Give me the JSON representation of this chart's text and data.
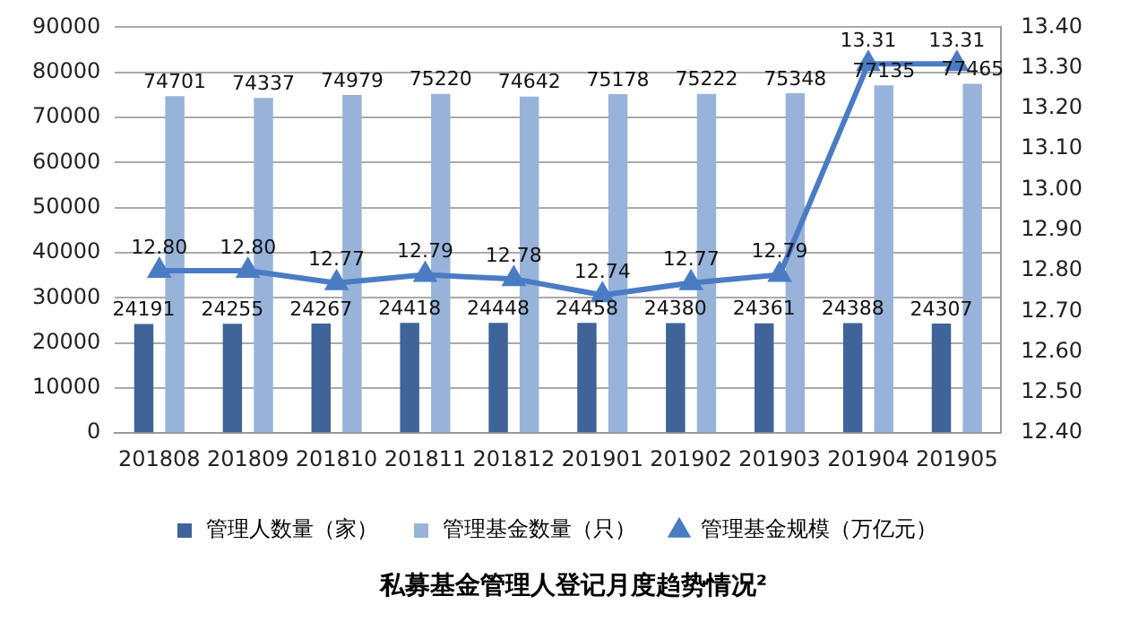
{
  "chart_data": {
    "type": "bar",
    "title": "私募基金管理人登记月度趋势情况²",
    "categories": [
      "201808",
      "201809",
      "201810",
      "201811",
      "201812",
      "201901",
      "201902",
      "201903",
      "201904",
      "201905"
    ],
    "series": [
      {
        "name": "管理人数量（家）",
        "color": "#3e6499",
        "values": [
          24191,
          24255,
          24267,
          24418,
          24448,
          24458,
          24380,
          24361,
          24388,
          24307
        ]
      },
      {
        "name": "管理基金数量（只）",
        "color": "#98b3da",
        "values": [
          74701,
          74337,
          74979,
          75220,
          74642,
          75178,
          75222,
          75348,
          77135,
          77465
        ]
      },
      {
        "name": "管理基金规模（万亿元）",
        "type": "line",
        "axis": "y2",
        "color": "#4a7cc4",
        "marker": "triangle",
        "values": [
          12.8,
          12.8,
          12.77,
          12.79,
          12.78,
          12.74,
          12.77,
          12.79,
          13.31,
          13.31
        ],
        "value_labels": [
          "12.80",
          "12.80",
          "12.77",
          "12.79",
          "12.78",
          "12.74",
          "12.77",
          "12.79",
          "13.31",
          "13.31"
        ]
      }
    ],
    "ylim": [
      0,
      90000
    ],
    "yticks": [
      0,
      10000,
      20000,
      30000,
      40000,
      50000,
      60000,
      70000,
      80000,
      90000
    ],
    "y2lim": [
      12.4,
      13.4
    ],
    "y2ticks": [
      {
        "value": 12.4,
        "label": "12.40"
      },
      {
        "value": 12.5,
        "label": "12.50"
      },
      {
        "value": 12.6,
        "label": "12.60"
      },
      {
        "value": 12.7,
        "label": "12.70"
      },
      {
        "value": 12.8,
        "label": "12.80"
      },
      {
        "value": 12.9,
        "label": "12.90"
      },
      {
        "value": 13.0,
        "label": "13.00"
      },
      {
        "value": 13.1,
        "label": "13.10"
      },
      {
        "value": 13.2,
        "label": "13.20"
      },
      {
        "value": 13.3,
        "label": "13.30"
      },
      {
        "value": 13.4,
        "label": "13.40"
      }
    ],
    "grid": "y",
    "legend": "bottom",
    "data_labels": true
  }
}
